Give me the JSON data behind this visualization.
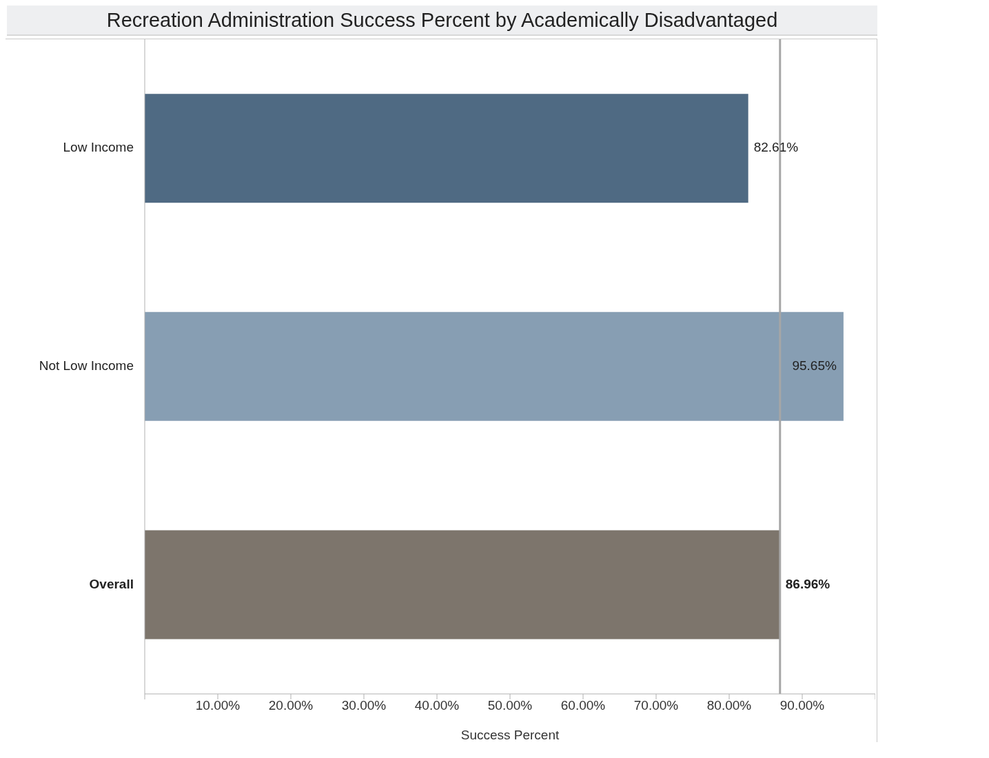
{
  "chart_data": {
    "type": "bar",
    "orientation": "horizontal",
    "title": "Recreation Administration Success Percent by Academically Disadvantaged",
    "xlabel": "Success Percent",
    "categories": [
      "Low Income",
      "Not Low Income",
      "Overall"
    ],
    "values": [
      82.61,
      95.65,
      86.96
    ],
    "colors": [
      "#4f6a83",
      "#879eb3",
      "#7d756c"
    ],
    "value_labels": [
      "82.61%",
      "95.65%",
      "86.96%"
    ],
    "xlim": [
      0,
      100
    ],
    "xticks": [
      {
        "value": 0,
        "label": null
      },
      {
        "value": 10,
        "label": "10.00%"
      },
      {
        "value": 20,
        "label": "20.00%"
      },
      {
        "value": 30,
        "label": "30.00%"
      },
      {
        "value": 40,
        "label": "40.00%"
      },
      {
        "value": 50,
        "label": "50.00%"
      },
      {
        "value": 60,
        "label": "60.00%"
      },
      {
        "value": 70,
        "label": "70.00%"
      },
      {
        "value": 80,
        "label": "80.00%"
      },
      {
        "value": 90,
        "label": "90.00%"
      },
      {
        "value": 100,
        "label": null
      }
    ],
    "ref_lines": [
      {
        "axis": "x",
        "value": 86.96,
        "color": "#a6a6a6"
      }
    ],
    "grid": false,
    "legend": false
  }
}
